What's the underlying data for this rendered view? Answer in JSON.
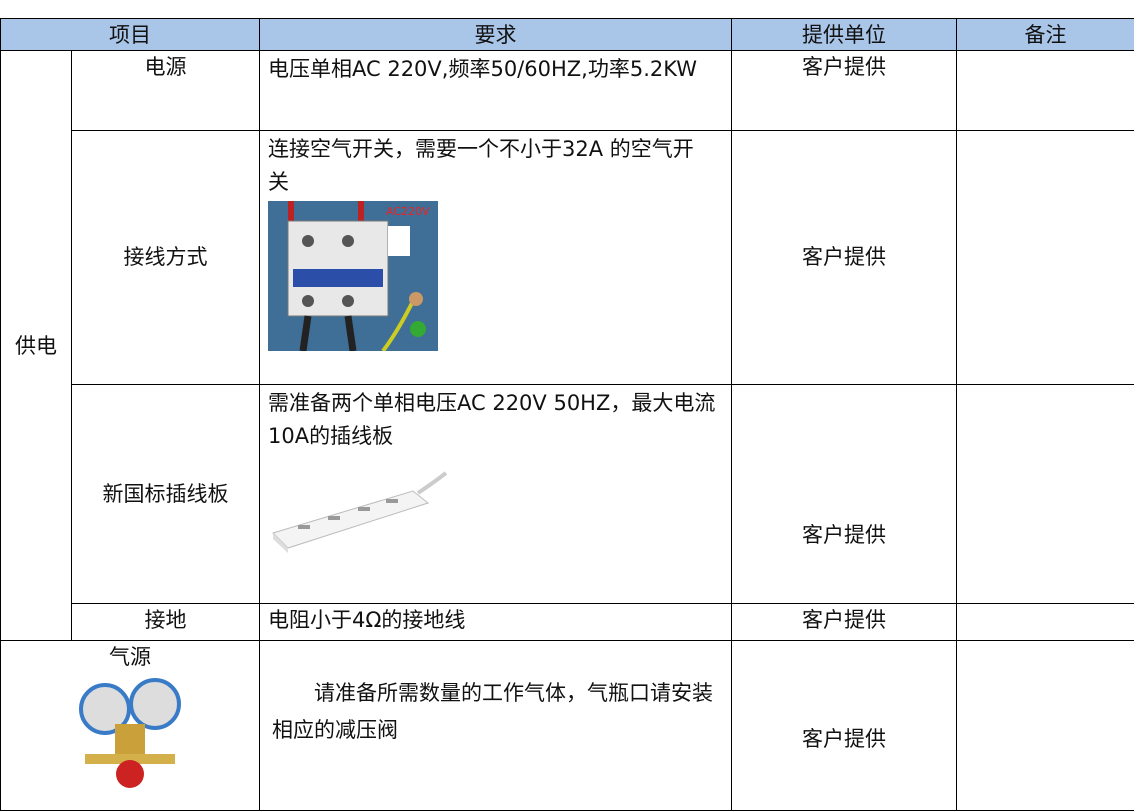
{
  "table": {
    "header": [
      "项目",
      "要求",
      "提供单位",
      "备注"
    ],
    "group": "供电",
    "rows": [
      {
        "item": "电源",
        "requirement": "电压单相AC 220V,频率50/60HZ,功率5.2KW",
        "provider": "客户提供"
      },
      {
        "item": "接线方式",
        "requirement": "连接空气开关，需要一个不小于32A 的空气开关",
        "image_label": "AC220V",
        "provider": "客户提供"
      },
      {
        "item": "新国标插线板",
        "requirement": "需准备两个单相电压AC 220V 50HZ，最大电流10A的插线板",
        "provider": "客户提供"
      },
      {
        "item": "接地",
        "requirement": "电阻小于4Ω的接地线",
        "provider": "客户提供"
      },
      {
        "item": "气源",
        "requirement": "请准备所需数量的工作气体，气瓶口请安装相应的减压阀",
        "provider": "客户提供"
      }
    ]
  }
}
